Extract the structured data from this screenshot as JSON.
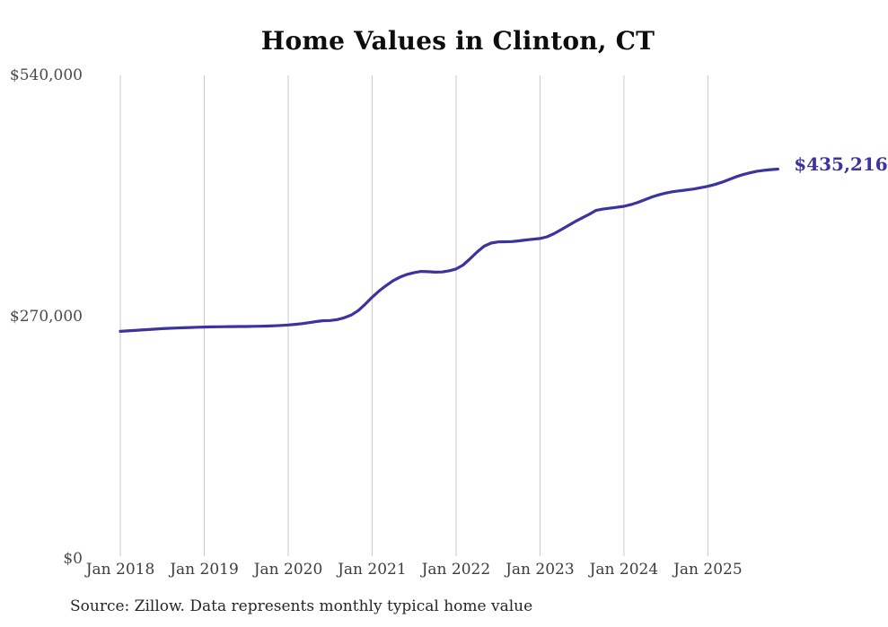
{
  "header": {
    "title": "Home Values in Clinton, CT"
  },
  "footer": {
    "source_note": "Source: Zillow. Data represents monthly typical home value"
  },
  "end_annotation": {
    "text": "$435,216",
    "value": 435216
  },
  "colors": {
    "line": "#3a33a0",
    "end_label": "#3a33a0",
    "grid": "#c9c9c9",
    "title": "#0d0d0d",
    "y_tick": "#4a4a4a",
    "x_tick": "#3d3d3d",
    "source": "#262626",
    "background": "#ffffff"
  },
  "chart_data": {
    "type": "line",
    "title": "Home Values in Clinton, CT",
    "xlabel": "",
    "ylabel": "",
    "series_name": "Typical home value (monthly)",
    "legend": "none",
    "grid": "vertical-only",
    "ylim": [
      0,
      540000
    ],
    "y_ticks": [
      0,
      270000,
      540000
    ],
    "y_tick_labels": [
      "$0",
      "$270,000",
      "$540,000"
    ],
    "x_tick_labels": [
      "Jan 2018",
      "Jan 2019",
      "Jan 2020",
      "Jan 2021",
      "Jan 2022",
      "Jan 2023",
      "Jan 2024",
      "Jan 2025"
    ],
    "x_tick_month_index": [
      0,
      12,
      24,
      36,
      48,
      60,
      72,
      84
    ],
    "x": [
      "2018-01",
      "2018-02",
      "2018-03",
      "2018-04",
      "2018-05",
      "2018-06",
      "2018-07",
      "2018-08",
      "2018-09",
      "2018-10",
      "2018-11",
      "2018-12",
      "2019-01",
      "2019-02",
      "2019-03",
      "2019-04",
      "2019-05",
      "2019-06",
      "2019-07",
      "2019-08",
      "2019-09",
      "2019-10",
      "2019-11",
      "2019-12",
      "2020-01",
      "2020-02",
      "2020-03",
      "2020-04",
      "2020-05",
      "2020-06",
      "2020-07",
      "2020-08",
      "2020-09",
      "2020-10",
      "2020-11",
      "2020-12",
      "2021-01",
      "2021-02",
      "2021-03",
      "2021-04",
      "2021-05",
      "2021-06",
      "2021-07",
      "2021-08",
      "2021-09",
      "2021-10",
      "2021-11",
      "2021-12",
      "2022-01",
      "2022-02",
      "2022-03",
      "2022-04",
      "2022-05",
      "2022-06",
      "2022-07",
      "2022-08",
      "2022-09",
      "2022-10",
      "2022-11",
      "2022-12",
      "2023-01",
      "2023-02",
      "2023-03",
      "2023-04",
      "2023-05",
      "2023-06",
      "2023-07",
      "2023-08",
      "2023-09",
      "2023-10",
      "2023-11",
      "2023-12",
      "2024-01",
      "2024-02",
      "2024-03",
      "2024-04",
      "2024-05",
      "2024-06",
      "2024-07",
      "2024-08",
      "2024-09",
      "2024-10",
      "2024-11",
      "2024-12",
      "2025-01",
      "2025-02",
      "2025-03",
      "2025-04",
      "2025-05",
      "2025-06",
      "2025-07",
      "2025-08",
      "2025-09",
      "2025-10",
      "2025-11"
    ],
    "values": [
      253900,
      254400,
      254900,
      255400,
      255900,
      256400,
      256900,
      257300,
      257600,
      257900,
      258200,
      258500,
      258700,
      258900,
      259000,
      259100,
      259200,
      259250,
      259300,
      259450,
      259600,
      259800,
      260100,
      260500,
      261000,
      261700,
      262500,
      263600,
      264800,
      265800,
      266000,
      267000,
      269000,
      272000,
      277000,
      284000,
      292000,
      299000,
      305000,
      310500,
      314500,
      317500,
      319500,
      320800,
      320500,
      320000,
      320200,
      321500,
      323500,
      328000,
      335000,
      342500,
      349000,
      352500,
      353800,
      354000,
      354200,
      355000,
      356000,
      356800,
      357600,
      359500,
      363000,
      367500,
      372000,
      376500,
      380500,
      384500,
      389000,
      390500,
      391500,
      392500,
      393600,
      395500,
      398000,
      401000,
      404000,
      406500,
      408500,
      410000,
      411000,
      412000,
      413000,
      414500,
      416000,
      418000,
      420500,
      423500,
      426500,
      429000,
      431000,
      432800,
      433800,
      434600,
      435216
    ]
  }
}
